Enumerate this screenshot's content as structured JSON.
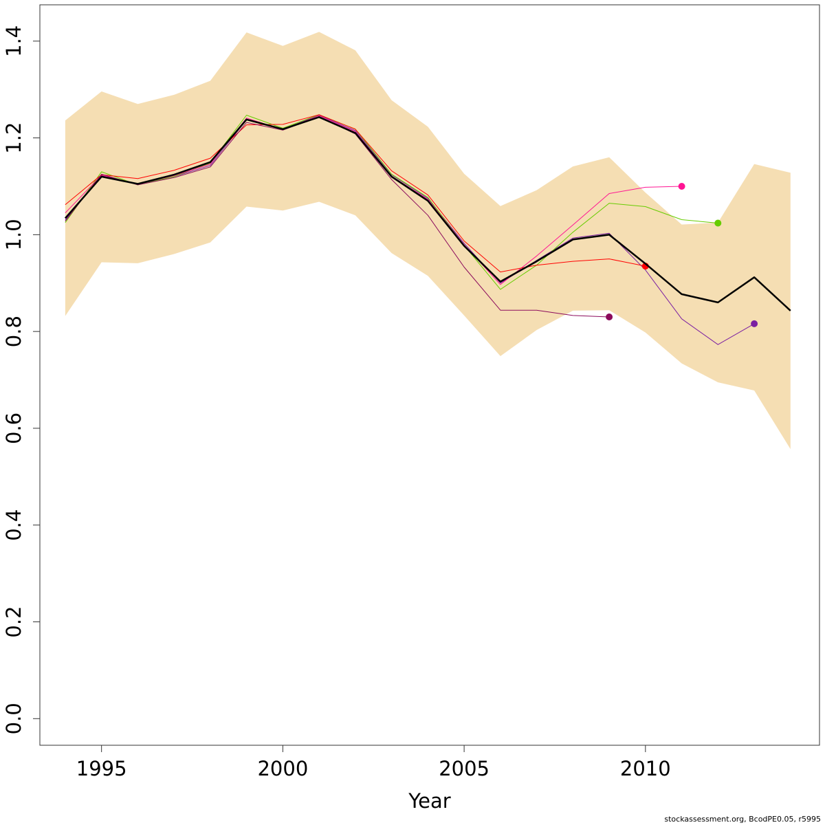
{
  "chart_data": {
    "type": "line",
    "title": "",
    "xlabel": "Year",
    "ylabel": "",
    "xlim": [
      1993.3,
      2014.8
    ],
    "ylim": [
      -0.055,
      1.475
    ],
    "x_ticks": [
      1995,
      2000,
      2005,
      2010
    ],
    "y_ticks": [
      0.0,
      0.2,
      0.4,
      0.6,
      0.8,
      1.0,
      1.2,
      1.4
    ],
    "y_tick_labels": [
      "0.0",
      "0.2",
      "0.4",
      "0.6",
      "0.8",
      "1.0",
      "1.2",
      "1.4"
    ],
    "grid": false,
    "band": {
      "color": "#F5DEB3",
      "x": [
        1994,
        1995,
        1996,
        1997,
        1998,
        1999,
        2000,
        2001,
        2002,
        2003,
        2004,
        2005,
        2006,
        2007,
        2008,
        2009,
        2010,
        2011,
        2012,
        2013,
        2014
      ],
      "upper": [
        1.236,
        1.296,
        1.27,
        1.289,
        1.318,
        1.418,
        1.39,
        1.419,
        1.381,
        1.278,
        1.223,
        1.126,
        1.059,
        1.092,
        1.141,
        1.16,
        1.087,
        1.021,
        1.025,
        1.146,
        1.128
      ],
      "lower": [
        0.832,
        0.943,
        0.941,
        0.96,
        0.984,
        1.058,
        1.05,
        1.068,
        1.04,
        0.962,
        0.915,
        0.833,
        0.749,
        0.803,
        0.843,
        0.844,
        0.798,
        0.734,
        0.695,
        0.678,
        0.557
      ]
    },
    "series": [
      {
        "color": "#000000",
        "width": 2.5,
        "end_marker": false,
        "x": [
          1994,
          1995,
          1996,
          1997,
          1998,
          1999,
          2000,
          2001,
          2002,
          2003,
          2004,
          2005,
          2006,
          2007,
          2008,
          2009,
          2010,
          2011,
          2012,
          2013,
          2014
        ],
        "values": [
          1.034,
          1.12,
          1.105,
          1.124,
          1.15,
          1.238,
          1.218,
          1.243,
          1.21,
          1.12,
          1.07,
          0.977,
          0.903,
          0.945,
          0.99,
          1.0,
          0.94,
          0.877,
          0.86,
          0.912,
          0.843
        ]
      },
      {
        "color": "#7B1FA2",
        "width": 1,
        "end_marker": true,
        "x": [
          1994,
          1995,
          1996,
          1997,
          1998,
          1999,
          2000,
          2001,
          2002,
          2003,
          2004,
          2005,
          2006,
          2007,
          2008,
          2009,
          2010,
          2011,
          2012,
          2013
        ],
        "values": [
          1.03,
          1.122,
          1.104,
          1.12,
          1.143,
          1.237,
          1.218,
          1.247,
          1.215,
          1.124,
          1.075,
          0.982,
          0.9,
          0.947,
          0.993,
          1.003,
          0.927,
          0.826,
          0.773,
          0.816
        ]
      },
      {
        "color": "#66CC00",
        "width": 1,
        "end_marker": true,
        "x": [
          1994,
          1995,
          1996,
          1997,
          1998,
          1999,
          2000,
          2001,
          2002,
          2003,
          2004,
          2005,
          2006,
          2007,
          2008,
          2009,
          2010,
          2011,
          2012
        ],
        "values": [
          1.025,
          1.13,
          1.103,
          1.12,
          1.148,
          1.247,
          1.22,
          1.248,
          1.218,
          1.125,
          1.077,
          0.978,
          0.887,
          0.937,
          1.005,
          1.065,
          1.058,
          1.031,
          1.024
        ]
      },
      {
        "color": "#FF1493",
        "width": 1,
        "end_marker": true,
        "x": [
          1994,
          1995,
          1996,
          1997,
          1998,
          1999,
          2000,
          2001,
          2002,
          2003,
          2004,
          2005,
          2006,
          2007,
          2008,
          2009,
          2010,
          2011
        ],
        "values": [
          1.045,
          1.123,
          1.105,
          1.122,
          1.146,
          1.241,
          1.217,
          1.246,
          1.213,
          1.121,
          1.073,
          0.979,
          0.897,
          0.956,
          1.02,
          1.085,
          1.098,
          1.1
        ]
      },
      {
        "color": "#FF0000",
        "width": 1,
        "end_marker": true,
        "x": [
          1994,
          1995,
          1996,
          1997,
          1998,
          1999,
          2000,
          2001,
          2002,
          2003,
          2004,
          2005,
          2006,
          2007,
          2008,
          2009,
          2010
        ],
        "values": [
          1.062,
          1.124,
          1.116,
          1.133,
          1.158,
          1.227,
          1.228,
          1.248,
          1.218,
          1.132,
          1.082,
          0.987,
          0.923,
          0.937,
          0.945,
          0.95,
          0.935
        ]
      },
      {
        "color": "#8B0A5C",
        "width": 1,
        "end_marker": true,
        "x": [
          1994,
          1995,
          1996,
          1997,
          1998,
          1999,
          2000,
          2001,
          2002,
          2003,
          2004,
          2005,
          2006,
          2007,
          2008,
          2009
        ],
        "values": [
          1.028,
          1.125,
          1.103,
          1.118,
          1.14,
          1.232,
          1.216,
          1.244,
          1.208,
          1.114,
          1.04,
          0.933,
          0.844,
          0.844,
          0.833,
          0.83
        ]
      }
    ]
  },
  "footnote": "stockassessment.org, BcodPE0.05, r5995"
}
